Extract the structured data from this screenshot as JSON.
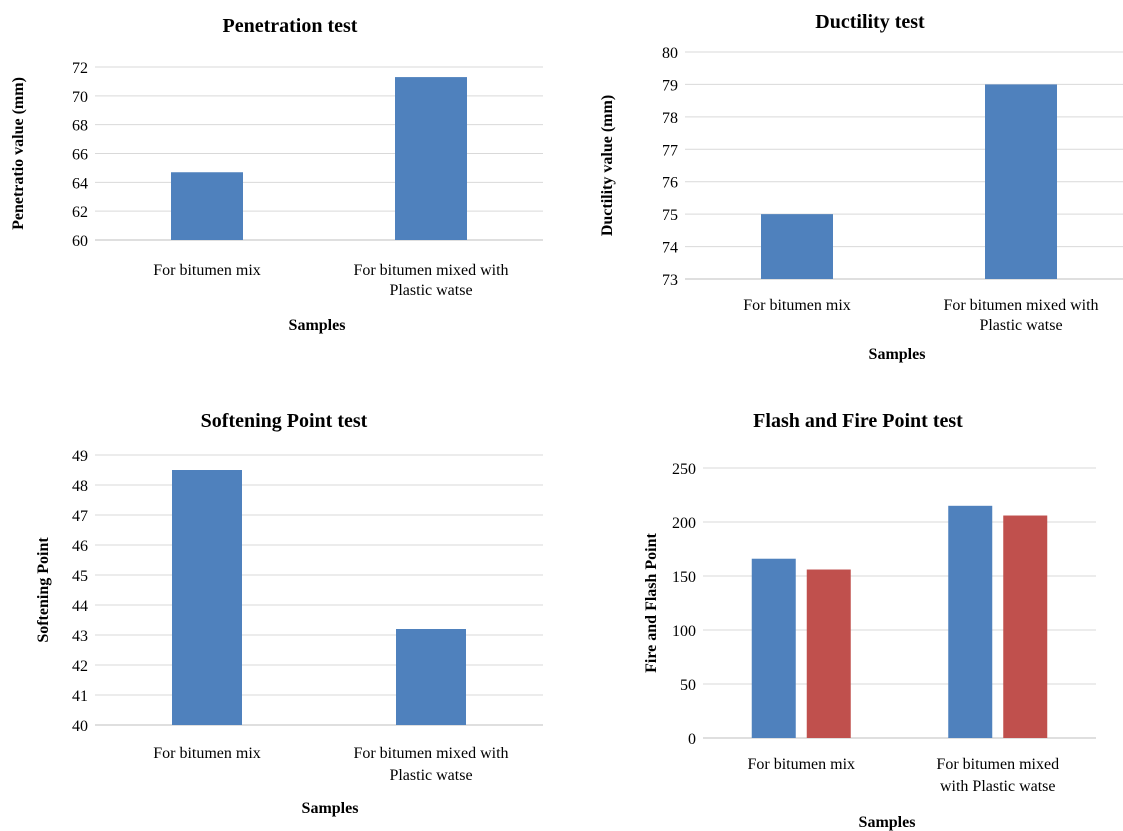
{
  "chart_data": [
    {
      "type": "bar",
      "title": "Penetration test",
      "xlabel": "Samples",
      "ylabel": "Penetratio value (mm)",
      "categories": [
        [
          "For bitumen mix"
        ],
        [
          "For bitumen mixed with",
          "Plastic watse"
        ]
      ],
      "series": [
        {
          "values": [
            64.7,
            71.3
          ]
        }
      ],
      "yticks": [
        "60",
        "62",
        "64",
        "66",
        "68",
        "70",
        "72"
      ],
      "ylim": [
        60,
        72
      ],
      "grid": true,
      "colors": [
        "#4f81bd"
      ]
    },
    {
      "type": "bar",
      "title": "Ductility test",
      "xlabel": "Samples",
      "ylabel": "Ductility value (mm)",
      "categories": [
        [
          "For bitumen mix"
        ],
        [
          "For bitumen mixed with",
          "Plastic watse"
        ]
      ],
      "series": [
        {
          "values": [
            75,
            79
          ]
        }
      ],
      "yticks": [
        "73",
        "74",
        "75",
        "76",
        "77",
        "78",
        "79",
        "80"
      ],
      "ylim": [
        73,
        80
      ],
      "grid": true,
      "colors": [
        "#4f81bd"
      ]
    },
    {
      "type": "bar",
      "title": "Softening Point test",
      "xlabel": "Samples",
      "ylabel": "Softening Point",
      "categories": [
        [
          "For bitumen mix"
        ],
        [
          "For bitumen mixed with",
          "Plastic watse"
        ]
      ],
      "series": [
        {
          "values": [
            48.5,
            43.2
          ]
        }
      ],
      "yticks": [
        "40",
        "41",
        "42",
        "43",
        "44",
        "45",
        "46",
        "47",
        "48",
        "49"
      ],
      "ylim": [
        40,
        49
      ],
      "grid": true,
      "colors": [
        "#4f81bd"
      ]
    },
    {
      "type": "bar",
      "title": "Flash and Fire Point test",
      "xlabel": "Samples",
      "ylabel": "Fire and Flash  Point",
      "categories": [
        [
          "For bitumen mix"
        ],
        [
          "For bitumen mixed",
          "with Plastic watse"
        ]
      ],
      "series": [
        {
          "values": [
            166,
            215
          ]
        },
        {
          "values": [
            156,
            206
          ]
        }
      ],
      "yticks": [
        "0",
        "50",
        "100",
        "150",
        "200",
        "250"
      ],
      "ylim": [
        0,
        250
      ],
      "grid": true,
      "colors": [
        "#4f81bd",
        "#c0504d"
      ]
    }
  ]
}
